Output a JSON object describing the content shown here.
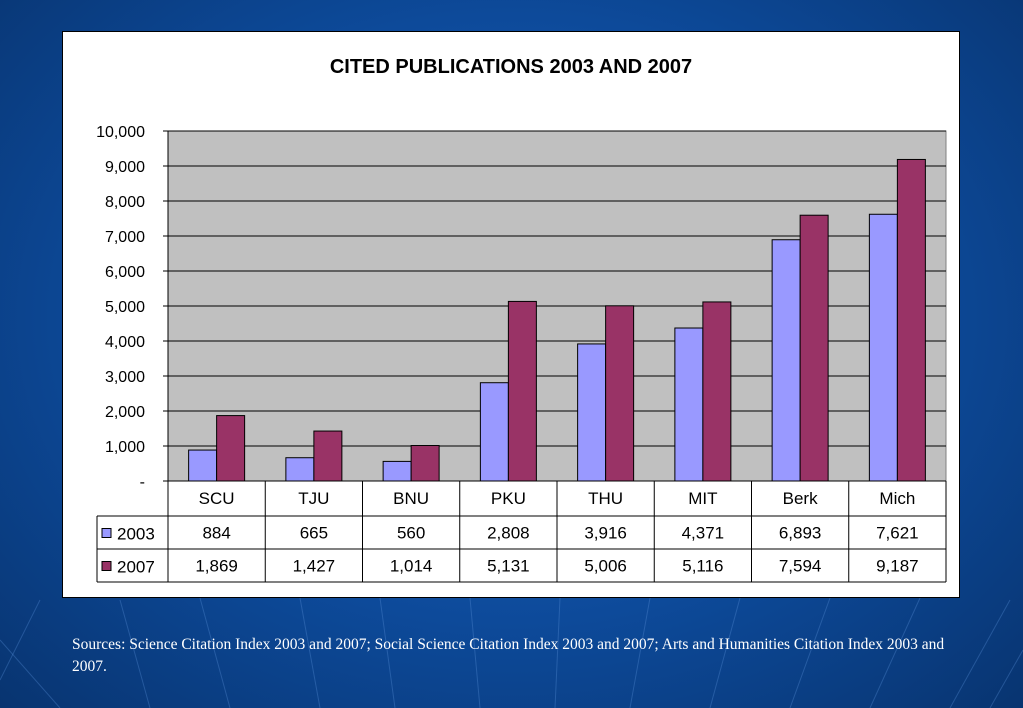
{
  "chart_data": {
    "type": "bar",
    "title": "CITED PUBLICATIONS 2003 AND 2007",
    "categories": [
      "SCU",
      "TJU",
      "BNU",
      "PKU",
      "THU",
      "MIT",
      "Berk",
      "Mich"
    ],
    "series": [
      {
        "name": "2003",
        "color": "#9999ff",
        "values": [
          884,
          665,
          560,
          2808,
          3916,
          4371,
          6893,
          7621
        ],
        "labels": [
          "884",
          "665",
          "560",
          "2,808",
          "3,916",
          "4,371",
          "6,893",
          "7,621"
        ]
      },
      {
        "name": "2007",
        "color": "#993366",
        "values": [
          1869,
          1427,
          1014,
          5131,
          5006,
          5116,
          7594,
          9187
        ],
        "labels": [
          "1,869",
          "1,427",
          "1,014",
          "5,131",
          "5,006",
          "5,116",
          "7,594",
          "9,187"
        ]
      }
    ],
    "ylim": [
      0,
      10000
    ],
    "y_tick_labels": [
      "-",
      "1,000",
      "2,000",
      "3,000",
      "4,000",
      "5,000",
      "6,000",
      "7,000",
      "8,000",
      "9,000",
      "10,000"
    ],
    "grid": true,
    "plot_background": "#c0c0c0",
    "data_table": true
  },
  "footnote": "Sources:  Science Citation Index 2003 and 2007; Social Science Citation Index 2003 and 2007; Arts and Humanities Citation Index 2003 and 2007.",
  "colors": {
    "background": "#1058b0",
    "panel": "#ffffff"
  }
}
